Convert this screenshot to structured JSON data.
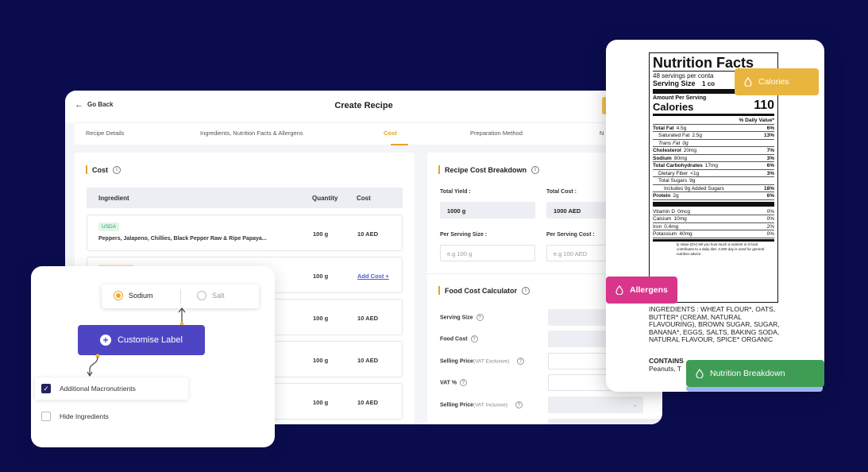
{
  "app": {
    "back_label": "Go Back",
    "title": "Create Recipe",
    "tabs": [
      "Recipe Details",
      "Ingredients, Nutrition Facts & Allergens",
      "Cost",
      "Preparation Method",
      "N"
    ],
    "active_tab": "Cost"
  },
  "cost": {
    "title": "Cost",
    "columns": [
      "Ingredient",
      "Quantity",
      "Cost"
    ],
    "rows": [
      {
        "badge": "USDA",
        "name": "Peppers, Jalapeno, Chillies, Black Pepper Raw & Ripe Papaya...",
        "qty": "100 g",
        "cost": "10 AED"
      },
      {
        "badge": "",
        "name": "",
        "qty": "100 g",
        "cost": "Add Cost +"
      },
      {
        "badge": "",
        "name": "",
        "qty": "100 g",
        "cost": "10 AED"
      },
      {
        "badge": "",
        "name": "",
        "qty": "100 g",
        "cost": "10 AED"
      },
      {
        "badge": "",
        "name": "",
        "qty": "100 g",
        "cost": "10 AED"
      }
    ]
  },
  "breakdown": {
    "title": "Recipe Cost Breakdown",
    "total_yield_label": "Total Yield :",
    "total_yield_value": "1000 g",
    "total_cost_label": "Total Cost :",
    "total_cost_value": "1000 AED",
    "per_serving_size_label": "Per Serving Size :",
    "per_serving_size_placeholder": "e.g 100 g",
    "per_serving_cost_label": "Per Serving Cost :",
    "per_serving_cost_placeholder": "e.g 100 AED"
  },
  "calculator": {
    "title": "Food Cost Calculator",
    "serving_size": "Serving Size",
    "food_cost": "Food Cost",
    "selling_price": "Selling Price",
    "vat_exclusive": "(VAT Exclusive)",
    "vat": "VAT %",
    "vat_inclusive": "(VAT Inclusive)",
    "dash": "-"
  },
  "customise": {
    "sodium": "Sodium",
    "salt": "Salt",
    "button": "Customise Label",
    "additional_macros": "Additional Macronutrients",
    "hide_ingredients": "Hide Ingredients"
  },
  "nutrition": {
    "title": "Nutrition Facts",
    "servings": "48 servings per conta",
    "serving_size_label": "Serving Size",
    "serving_size_value": "1 co",
    "amount_per_serving": "Amount Per Serving",
    "calories_label": "Calories",
    "calories_value": "110",
    "dv_header": "% Daily Value*",
    "rows": [
      {
        "label": "Total Fat",
        "amount": "4.5g",
        "dv": "6%",
        "bold": true
      },
      {
        "label": "Saturated Fat",
        "amount": "2.5g",
        "dv": "13%",
        "indent": 1
      },
      {
        "label": "Trans Fat",
        "amount": "0g",
        "dv": "",
        "indent": 1,
        "italic": true
      },
      {
        "label": "Cholesterol",
        "amount": "20mg",
        "dv": "7%",
        "bold": true
      },
      {
        "label": "Sodium",
        "amount": "80mg",
        "dv": "3%",
        "bold": true
      },
      {
        "label": "Total Carbohydrates",
        "amount": "17mg",
        "dv": "6%",
        "bold": true
      },
      {
        "label": "Dietary Fiber",
        "amount": "<1g",
        "dv": "3%",
        "indent": 1
      },
      {
        "label": "Total Sugars",
        "amount": "9g",
        "dv": "",
        "indent": 1
      },
      {
        "label": "Includes 9g Added Sugars",
        "amount": "",
        "dv": "18%",
        "indent": 2
      },
      {
        "label": "Protein",
        "amount": "2g",
        "dv": "6%",
        "bold": true
      }
    ],
    "vitamins": [
      {
        "label": "Vitamin D",
        "amount": "0mcg",
        "dv": "0%"
      },
      {
        "label": "Calcium",
        "amount": "10mg",
        "dv": "0%"
      },
      {
        "label": "Iron",
        "amount": "0.4mg",
        "dv": "2%"
      },
      {
        "label": "Potassium",
        "amount": "40mg",
        "dv": "0%"
      }
    ],
    "footnote": "ly Value (DV) tell you how much a nutrient in d food contributes to a daily diet. 2,000 day is used for general nutrition advice",
    "ingredients": "INGREDIENTS : WHEAT FLOUR*, OATS, BUTTER* (CREAM, NATURAL FLAVOURING), BROWN SUGAR, SUGAR, BANANA*, EGGS, SALTS, BAKING SODA, NATURAL FLAVOUR, SPICE* ORGANIC",
    "contains": "CONTAINS",
    "contains_rest": "Peanuts, T"
  },
  "pills": {
    "calories": "Calories",
    "allergens": "Allergens",
    "nutrition_breakdown": "Nutrition Breakdown"
  },
  "colors": {
    "background": "#0b0c4e",
    "accent": "#e5a32a",
    "primary_button": "#4d45c4",
    "calories": "#e8b53e",
    "allergens": "#d9358b",
    "nutrition_breakdown": "#3f9c55"
  }
}
